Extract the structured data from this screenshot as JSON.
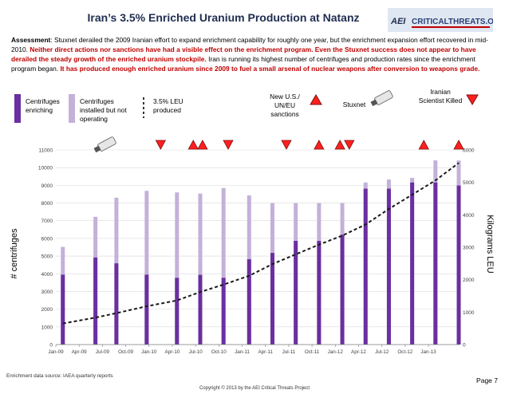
{
  "header": {
    "title": "Iran’s 3.5% Enriched Uranium Production at Natanz",
    "logo_prefix": "AEI",
    "logo_text": "CRITICALTHREATS.ORG"
  },
  "assessment": {
    "label": "Assessment",
    "intro": ": Stuxnet derailed the 2009 Iranian effort to expand enrichment capability for roughly one year, but the enrichment expansion effort recovered in mid-2010. ",
    "red1": "Neither direct actions nor sanctions have had a visible effect on the enrichment program. Even the Stuxnet success does not appear to have derailed the steady growth of the enriched uranium stockpile.",
    "mid": " Iran is running its highest number of centrifuges and production rates since the enrichment program began. ",
    "red2": "It has produced enough enriched uranium since 2009 to fuel a small arsenal of nuclear weapons after conversion to weapons grade."
  },
  "legend": {
    "enriching": "Centrifuges enriching",
    "installed": "Centrifuges installed but not operating",
    "leu": "3.5% LEU produced"
  },
  "events": {
    "sanctions": "New U.S./ UN/EU sanctions",
    "stuxnet": "Stuxnet",
    "scientist": "Iranian Scientist Killed"
  },
  "colors": {
    "enriching": "#6a2fa0",
    "installed": "#c3b1d9",
    "title": "#1f2d4f",
    "accent_red": "#c00000",
    "triangle_red": "#ff1f1f"
  },
  "chart_data": {
    "type": "bar",
    "title": "Iran’s 3.5% Enriched Uranium Production at Natanz",
    "ylabel": "# centrifuges",
    "y2label": "Kilograms LEU",
    "ylim": [
      0,
      11000
    ],
    "y2lim": [
      0,
      6000
    ],
    "yticks": [
      0,
      1000,
      2000,
      3000,
      4000,
      5000,
      6000,
      7000,
      8000,
      9000,
      10000,
      11000
    ],
    "y2ticks": [
      0,
      1000,
      2000,
      3000,
      4000,
      5000,
      6000
    ],
    "xticks": [
      "Jan-09",
      "Apr-09",
      "Jul-09",
      "Oct-09",
      "Jan-10",
      "Apr-10",
      "Jul-10",
      "Oct-10",
      "Jan-11",
      "Apr-11",
      "Jul-11",
      "Oct-11",
      "Jan-12",
      "Apr-12",
      "Jul-12",
      "Oct-12",
      "Jan-13"
    ],
    "series": [
      {
        "name": "Centrifuges enriching",
        "points": [
          {
            "x": 0.3,
            "y": 3950
          },
          {
            "x": 1.7,
            "y": 4920
          },
          {
            "x": 2.6,
            "y": 4590
          },
          {
            "x": 3.9,
            "y": 3950
          },
          {
            "x": 5.2,
            "y": 3770
          },
          {
            "x": 6.2,
            "y": 3940
          },
          {
            "x": 7.2,
            "y": 3770
          },
          {
            "x": 8.3,
            "y": 4820
          },
          {
            "x": 9.3,
            "y": 5180
          },
          {
            "x": 10.3,
            "y": 5860
          },
          {
            "x": 11.3,
            "y": 5860
          },
          {
            "x": 12.3,
            "y": 6210
          },
          {
            "x": 13.3,
            "y": 8810
          },
          {
            "x": 14.3,
            "y": 8810
          },
          {
            "x": 15.3,
            "y": 9160
          },
          {
            "x": 16.3,
            "y": 9160
          },
          {
            "x": 17.3,
            "y": 8990
          }
        ]
      },
      {
        "name": "Centrifuges installed but not operating",
        "points": [
          {
            "x": 0.3,
            "y": 5520
          },
          {
            "x": 1.7,
            "y": 7220
          },
          {
            "x": 2.6,
            "y": 8300
          },
          {
            "x": 3.9,
            "y": 8690
          },
          {
            "x": 5.2,
            "y": 8600
          },
          {
            "x": 6.2,
            "y": 8530
          },
          {
            "x": 7.2,
            "y": 8850
          },
          {
            "x": 8.3,
            "y": 8430
          },
          {
            "x": 9.3,
            "y": 8000
          },
          {
            "x": 10.3,
            "y": 8000
          },
          {
            "x": 11.3,
            "y": 8000
          },
          {
            "x": 12.3,
            "y": 8000
          },
          {
            "x": 13.3,
            "y": 9160
          },
          {
            "x": 14.3,
            "y": 9330
          },
          {
            "x": 15.3,
            "y": 9420
          },
          {
            "x": 16.3,
            "y": 10410
          },
          {
            "x": 17.3,
            "y": 10400
          }
        ]
      },
      {
        "name": "3.5% LEU produced",
        "axis": "right",
        "points": [
          {
            "x": 0.3,
            "y": 650
          },
          {
            "x": 1.7,
            "y": 830
          },
          {
            "x": 2.6,
            "y": 970
          },
          {
            "x": 3.9,
            "y": 1180
          },
          {
            "x": 5.2,
            "y": 1360
          },
          {
            "x": 6.2,
            "y": 1620
          },
          {
            "x": 7.2,
            "y": 1850
          },
          {
            "x": 8.3,
            "y": 2120
          },
          {
            "x": 9.3,
            "y": 2480
          },
          {
            "x": 10.3,
            "y": 2780
          },
          {
            "x": 11.3,
            "y": 3080
          },
          {
            "x": 12.3,
            "y": 3360
          },
          {
            "x": 13.3,
            "y": 3700
          },
          {
            "x": 14.3,
            "y": 4180
          },
          {
            "x": 15.3,
            "y": 4620
          },
          {
            "x": 16.3,
            "y": 5060
          },
          {
            "x": 17.3,
            "y": 5600
          }
        ]
      }
    ],
    "markers": [
      {
        "type": "stuxnet",
        "x": 2.1
      },
      {
        "type": "scientist",
        "x": 4.5
      },
      {
        "type": "sanctions",
        "x": 5.9
      },
      {
        "type": "sanctions",
        "x": 6.3
      },
      {
        "type": "scientist",
        "x": 7.4
      },
      {
        "type": "scientist",
        "x": 9.9
      },
      {
        "type": "sanctions",
        "x": 11.3
      },
      {
        "type": "sanctions",
        "x": 12.2
      },
      {
        "type": "scientist",
        "x": 12.6
      },
      {
        "type": "sanctions",
        "x": 15.8
      },
      {
        "type": "sanctions",
        "x": 17.3
      }
    ]
  },
  "footer": {
    "source": "Enrichment data source: IAEA quarterly reports",
    "page": "Page 7",
    "copyright": "Copyright © 2013 by the AEI Critical Threats Project"
  }
}
